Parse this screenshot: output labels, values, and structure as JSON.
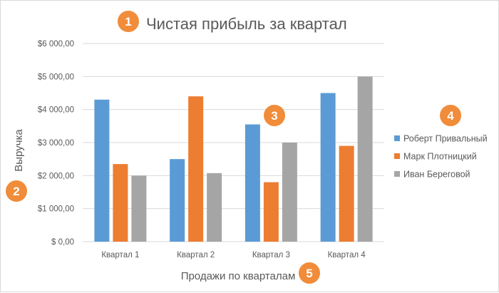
{
  "colors": {
    "series": [
      "#5b9bd5",
      "#ed7d31",
      "#a5a5a5"
    ],
    "gridline": "#d9d9d9",
    "callout": "#f08c3a"
  },
  "callouts": [
    "1",
    "2",
    "3",
    "4",
    "5"
  ],
  "chart_data": {
    "type": "bar",
    "title": "Чистая прибыль за квартал",
    "xlabel": "Продажи по кварталам",
    "ylabel": "Выручка",
    "categories": [
      "Квартал 1",
      "Квартал 2",
      "Квартал 3",
      "Квартал 4"
    ],
    "series": [
      {
        "name": "Роберт Привальный",
        "values": [
          4300,
          2500,
          3550,
          4500
        ]
      },
      {
        "name": "Марк Плотницкий",
        "values": [
          2350,
          4400,
          1800,
          2900
        ]
      },
      {
        "name": "Иван Береговой",
        "values": [
          2000,
          2075,
          3000,
          5000
        ]
      }
    ],
    "ylim": [
      0,
      6000
    ],
    "yticks": [
      0,
      1000,
      2000,
      3000,
      4000,
      5000,
      6000
    ],
    "ytick_labels": [
      "$ 0,00",
      "$1 000,00",
      "$2 000,00",
      "$3 000,00",
      "$4 000,00",
      "$5 000,00",
      "$6 000,00"
    ],
    "grid": true,
    "legend_position": "right"
  }
}
